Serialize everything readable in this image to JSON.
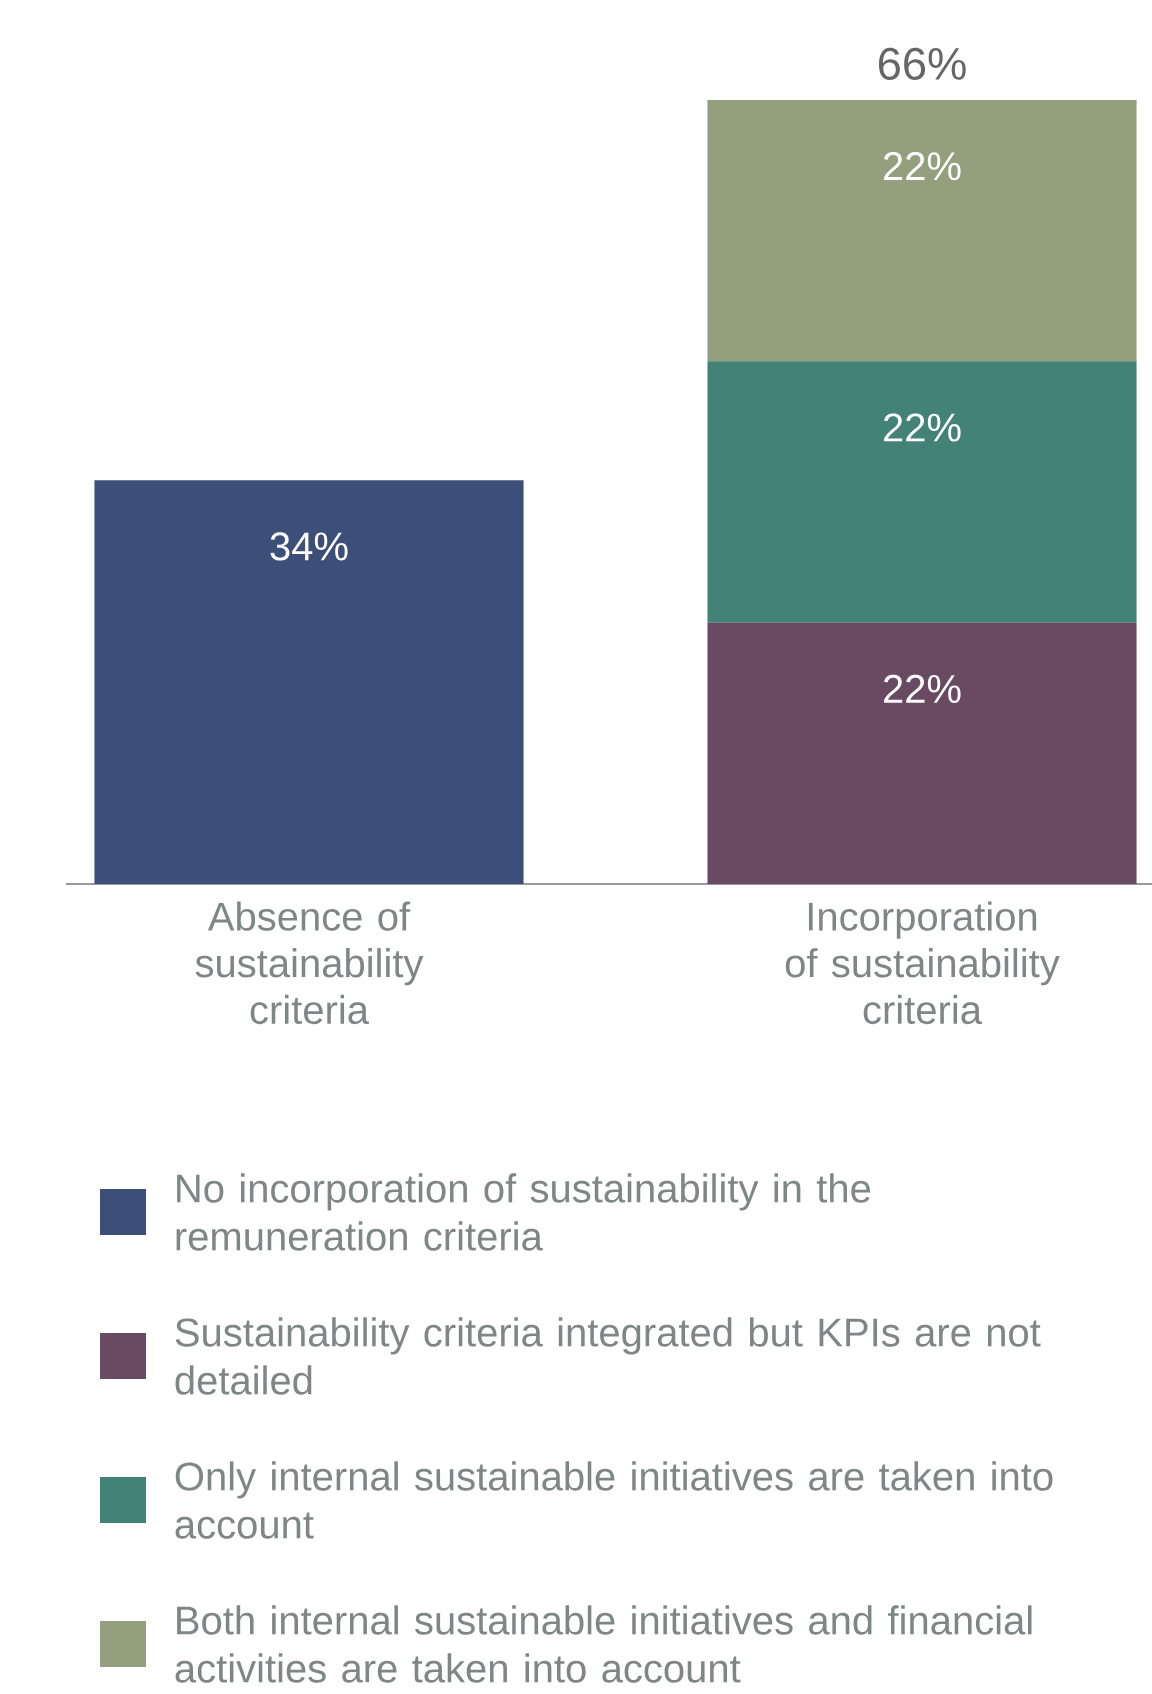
{
  "chart_data": {
    "type": "bar",
    "stacked": true,
    "categories": [
      "Absence of sustainability criteria",
      "Incorporation of sustainability criteria"
    ],
    "series": [
      {
        "name": "No incorporation of sustainability in the remuneration criteria",
        "color": "#3b4f78",
        "values": [
          34,
          null
        ],
        "value_labels": [
          "34%",
          null
        ]
      },
      {
        "name": "Sustainability criteria integrated but KPIs are not detailed",
        "color": "#6a4a62",
        "values": [
          null,
          22
        ],
        "value_labels": [
          null,
          "22%"
        ]
      },
      {
        "name": "Only internal sustainable initiatives are taken into account",
        "color": "#428277",
        "values": [
          null,
          22
        ],
        "value_labels": [
          null,
          "22%"
        ]
      },
      {
        "name": "Both internal sustainable initiatives and financial activities are taken into account",
        "color": "#949f7e",
        "values": [
          null,
          22
        ],
        "value_labels": [
          null,
          "22%"
        ]
      }
    ],
    "totals": [
      null,
      "66%"
    ],
    "legend": "bottom"
  }
}
